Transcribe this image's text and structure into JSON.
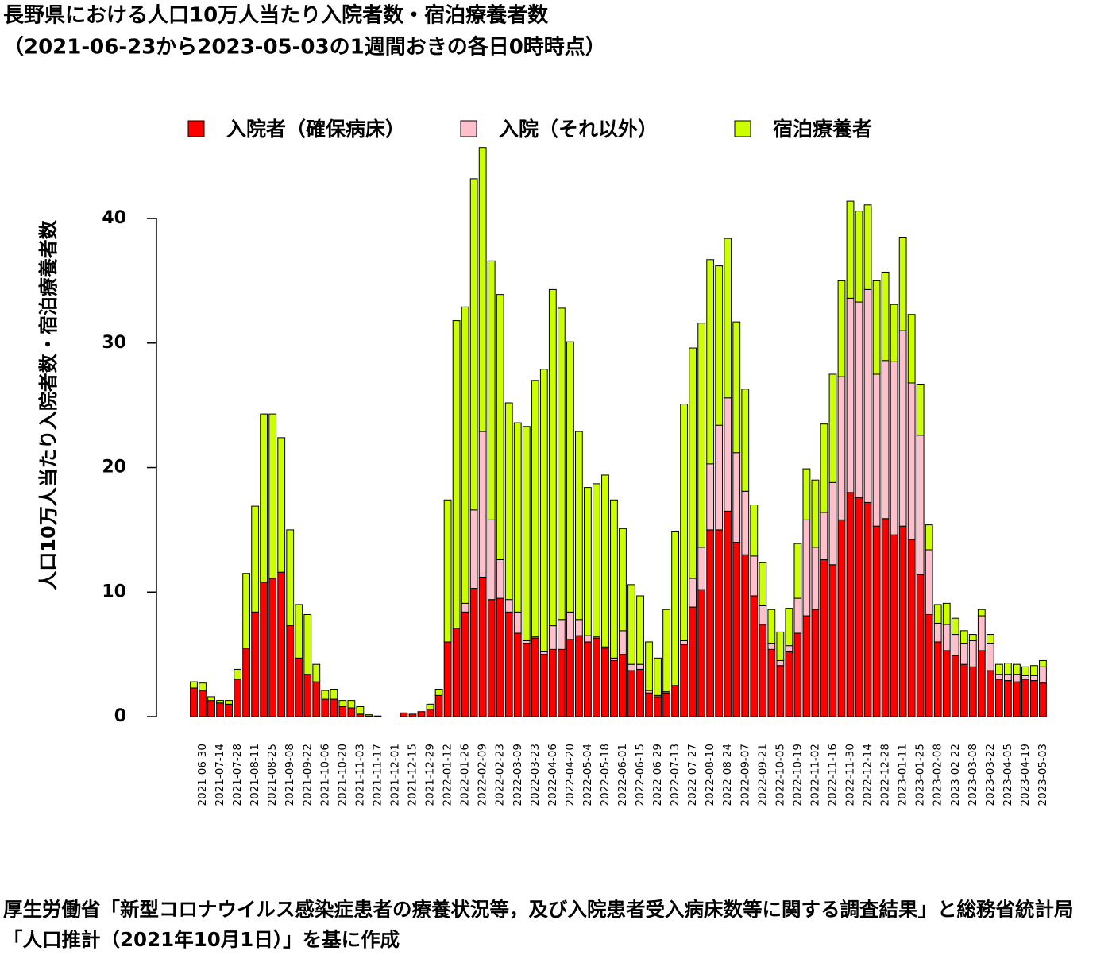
{
  "chart_data": {
    "type": "stacked_bar",
    "title": "長野県における人口10万人当たり入院者数・宿泊療養者数",
    "subtitle": "（2021-06-23から2023-05-03の1週間おきの各日0時時点）",
    "y_label": "人口10万人当たり入院者数・宿泊療養者数",
    "source": "厚生労働省「新型コロナウイルス感染症患者の療養状況等，及び入院患者受入病床数等に関する調査結果」と総務省統計局「人口推計（2021年10月1日）」を基に作成",
    "categories": [
      null,
      "2021-06-30",
      null,
      "2021-07-14",
      null,
      "2021-07-28",
      null,
      "2021-08-11",
      null,
      "2021-08-25",
      null,
      "2021-09-08",
      null,
      "2021-09-22",
      null,
      "2021-10-06",
      null,
      "2021-10-20",
      null,
      "2021-11-03",
      null,
      "2021-11-17",
      null,
      "2021-12-01",
      null,
      "2021-12-15",
      null,
      "2021-12-29",
      null,
      "2022-01-12",
      null,
      "2022-01-26",
      null,
      "2022-02-09",
      null,
      "2022-02-23",
      null,
      "2022-03-09",
      null,
      "2022-03-23",
      null,
      "2022-04-06",
      null,
      "2022-04-20",
      null,
      "2022-05-04",
      null,
      "2022-05-18",
      null,
      "2022-06-01",
      null,
      "2022-06-15",
      null,
      "2022-06-29",
      null,
      "2022-07-13",
      null,
      "2022-07-27",
      null,
      "2022-08-10",
      null,
      "2022-08-24",
      null,
      "2022-09-07",
      null,
      "2022-09-21",
      null,
      "2022-10-05",
      null,
      "2022-10-19",
      null,
      "2022-11-02",
      null,
      "2022-11-16",
      null,
      "2022-11-30",
      null,
      "2022-12-14",
      null,
      "2022-12-28",
      null,
      "2023-01-11",
      null,
      "2023-01-25",
      null,
      "2023-02-08",
      null,
      "2023-02-22",
      null,
      "2023-03-08",
      null,
      "2023-03-22",
      null,
      "2023-04-05",
      null,
      "2023-04-19",
      null,
      "2023-05-03"
    ],
    "series": [
      {
        "name": "入院者（確保病床）",
        "color": "#ff0000",
        "values": [
          2.3,
          2.1,
          1.3,
          1.1,
          1.0,
          3.0,
          5.5,
          8.4,
          10.8,
          11.1,
          11.6,
          7.3,
          4.7,
          3.4,
          2.8,
          1.4,
          1.4,
          0.8,
          0.7,
          0.2,
          0.05,
          0,
          0,
          0,
          0.3,
          0.2,
          0.4,
          0.6,
          1.7,
          6.0,
          7.1,
          8.4,
          10.3,
          11.2,
          9.4,
          9.5,
          8.4,
          6.7,
          5.9,
          6.3,
          5.0,
          5.4,
          5.4,
          6.2,
          6.5,
          6.0,
          6.3,
          5.5,
          4.5,
          5.0,
          3.7,
          3.8,
          1.9,
          1.6,
          1.9,
          2.5,
          5.8,
          8.8,
          10.2,
          15.0,
          15.0,
          16.5,
          14.0,
          13.0,
          9.7,
          7.4,
          5.4,
          4.1,
          5.2,
          6.7,
          8.1,
          8.6,
          12.6,
          12.2,
          15.8,
          18.0,
          17.6,
          17.2,
          15.3,
          15.9,
          14.6,
          15.3,
          14.2,
          11.4,
          8.2,
          6.0,
          5.3,
          4.9,
          4.2,
          4.0,
          5.3,
          3.7,
          3.0,
          2.9,
          2.8,
          3.0,
          2.9,
          2.7
        ]
      },
      {
        "name": "入院（それ以外）",
        "color": "#ffc0cb",
        "values": [
          0,
          0,
          0,
          0,
          0,
          0,
          0,
          0,
          0,
          0,
          0,
          0,
          0,
          0,
          0,
          0,
          0,
          0,
          0,
          0,
          0,
          0,
          0,
          0,
          0,
          0,
          0,
          0,
          0,
          0,
          0,
          0.7,
          6.3,
          11.7,
          6.4,
          3.1,
          1.0,
          1.7,
          0.2,
          0.1,
          0.2,
          1.9,
          2.4,
          2.2,
          1.3,
          0.5,
          0.1,
          0.1,
          0.2,
          1.9,
          0.5,
          0.4,
          0.2,
          0.1,
          0.1,
          0,
          0.3,
          2.3,
          3.4,
          5.3,
          8.4,
          9.1,
          7.2,
          5.1,
          3.2,
          1.5,
          0.5,
          0.4,
          0.5,
          2.8,
          7.7,
          5.0,
          3.8,
          6.6,
          11.5,
          15.6,
          15.7,
          17.1,
          12.2,
          12.7,
          13.9,
          15.7,
          12.6,
          11.2,
          5.2,
          1.5,
          2.1,
          1.7,
          1.7,
          2.1,
          2.8,
          2.2,
          0.4,
          0.5,
          0.6,
          0.3,
          0.4,
          1.3
        ]
      },
      {
        "name": "宿泊療養者",
        "color": "#ccff00",
        "values": [
          0.5,
          0.6,
          0.3,
          0.2,
          0.3,
          0.8,
          6.0,
          8.5,
          13.5,
          13.2,
          10.8,
          7.7,
          4.3,
          4.8,
          1.4,
          0.7,
          0.8,
          0.5,
          0.6,
          0.6,
          0.1,
          0.05,
          0,
          0,
          0,
          0,
          0,
          0.4,
          0.5,
          11.4,
          24.7,
          23.8,
          26.6,
          22.8,
          20.8,
          21.3,
          15.8,
          15.2,
          17.2,
          20.6,
          22.7,
          27.0,
          25.0,
          21.7,
          15.1,
          11.9,
          12.3,
          13.8,
          12.7,
          8.2,
          6.4,
          5.5,
          3.9,
          3.0,
          6.6,
          12.4,
          19.0,
          18.5,
          18.0,
          16.4,
          12.8,
          12.8,
          10.5,
          8.2,
          4.1,
          3.5,
          2.7,
          2.3,
          3.0,
          4.4,
          4.1,
          5.4,
          7.1,
          8.7,
          7.7,
          7.8,
          7.3,
          6.8,
          7.5,
          7.1,
          4.6,
          7.5,
          5.5,
          4.1,
          2.0,
          1.5,
          1.7,
          1.3,
          1.0,
          0.5,
          0.5,
          0.7,
          0.8,
          0.9,
          0.8,
          0.7,
          0.8,
          0.5
        ]
      }
    ],
    "ylim": [
      0,
      46
    ],
    "yticks": [
      0,
      10,
      20,
      30,
      40
    ],
    "legend": "top"
  }
}
